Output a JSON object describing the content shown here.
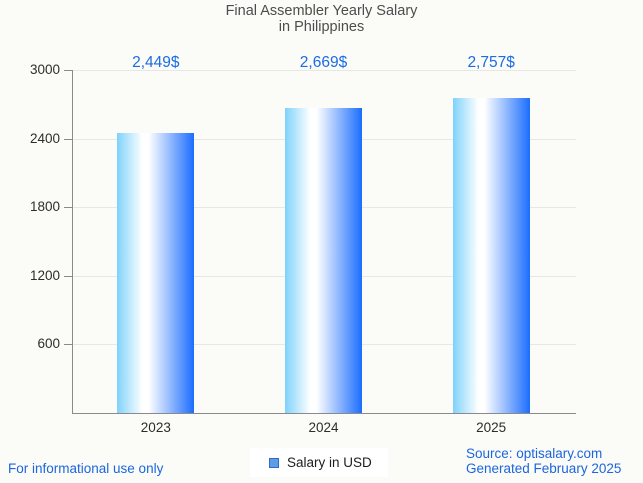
{
  "title": {
    "line1": "Final Assembler Yearly Salary",
    "line2": "in Philippines"
  },
  "chart_data": {
    "type": "bar",
    "title": "Final Assembler Yearly Salary in Philippines",
    "categories": [
      "2023",
      "2024",
      "2025"
    ],
    "series": [
      {
        "name": "Salary in USD",
        "values": [
          2449,
          2669,
          2757
        ]
      }
    ],
    "value_labels": [
      "2,449$",
      "2,669$",
      "2,757$"
    ],
    "xlabel": "",
    "ylabel": "",
    "ylim": [
      0,
      3000
    ],
    "yticks": [
      600,
      1200,
      1800,
      2400,
      3000
    ],
    "grid": true,
    "legend_position": "bottom",
    "bar_gradient": [
      "#7fd2fb",
      "#ffffff",
      "#1b6dfe"
    ]
  },
  "legend": {
    "label": "Salary in USD",
    "swatch_fill": "#5c9de5",
    "swatch_border": "#2f6cc5"
  },
  "footer": {
    "left": "For informational use only",
    "source": "Source: optisalary.com",
    "generated": "Generated February 2025"
  },
  "colors": {
    "accent_blue": "#1b6ce4",
    "footer_blue": "#1b66dd",
    "title_gray": "#4d4d4d",
    "axis_gray": "#8a8a8a",
    "grid_gray": "#e7e7e3",
    "tick_label": "#2d2d2d",
    "background": "#fbfbf8"
  }
}
